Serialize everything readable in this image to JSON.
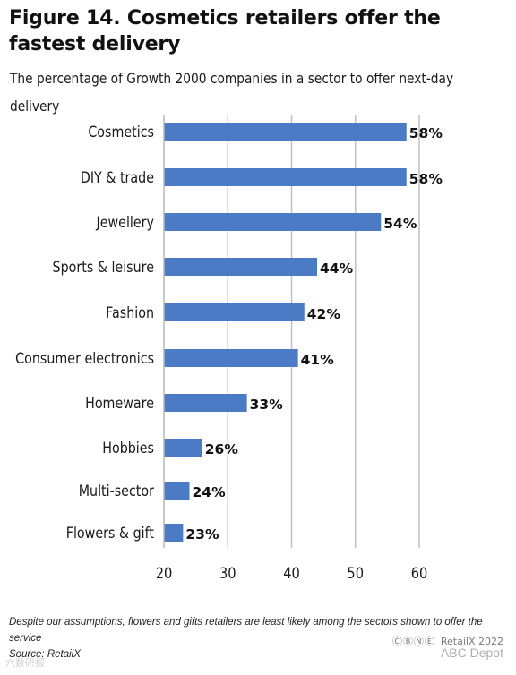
{
  "title": "Figure 14. Cosmetics retailers offer the fastest delivery",
  "subtitle": "The percentage of Growth 2000 companies in a sector to offer next-day delivery",
  "chart_data": {
    "type": "bar",
    "orientation": "horizontal",
    "categories": [
      "Cosmetics",
      "DIY & trade",
      "Jewellery",
      "Sports & leisure",
      "Fashion",
      "Consumer electronics",
      "Homeware",
      "Hobbies",
      "Multi-sector",
      "Flowers & gift"
    ],
    "values": [
      58,
      58,
      54,
      44,
      42,
      41,
      33,
      26,
      24,
      23
    ],
    "value_labels": [
      "58%",
      "58%",
      "54%",
      "44%",
      "42%",
      "41%",
      "33%",
      "26%",
      "24%",
      "23%"
    ],
    "xlim": [
      20,
      60
    ],
    "xticks": [
      "20",
      "30",
      "40",
      "50",
      "60"
    ],
    "grid": "vertical",
    "bar_color": "#4a7bc4",
    "grid_color": "#bdbdbd"
  },
  "footnote": "Despite our assumptions, flowers and gifts retailers are least likely among the sectors shown to offer the service",
  "source": "Source: RetailX",
  "credit": "RetailX 2022",
  "cc_icons": "cc-by-nc-nd-icons",
  "watermark_right": "ABC Depot",
  "watermark_left": "六数研报"
}
